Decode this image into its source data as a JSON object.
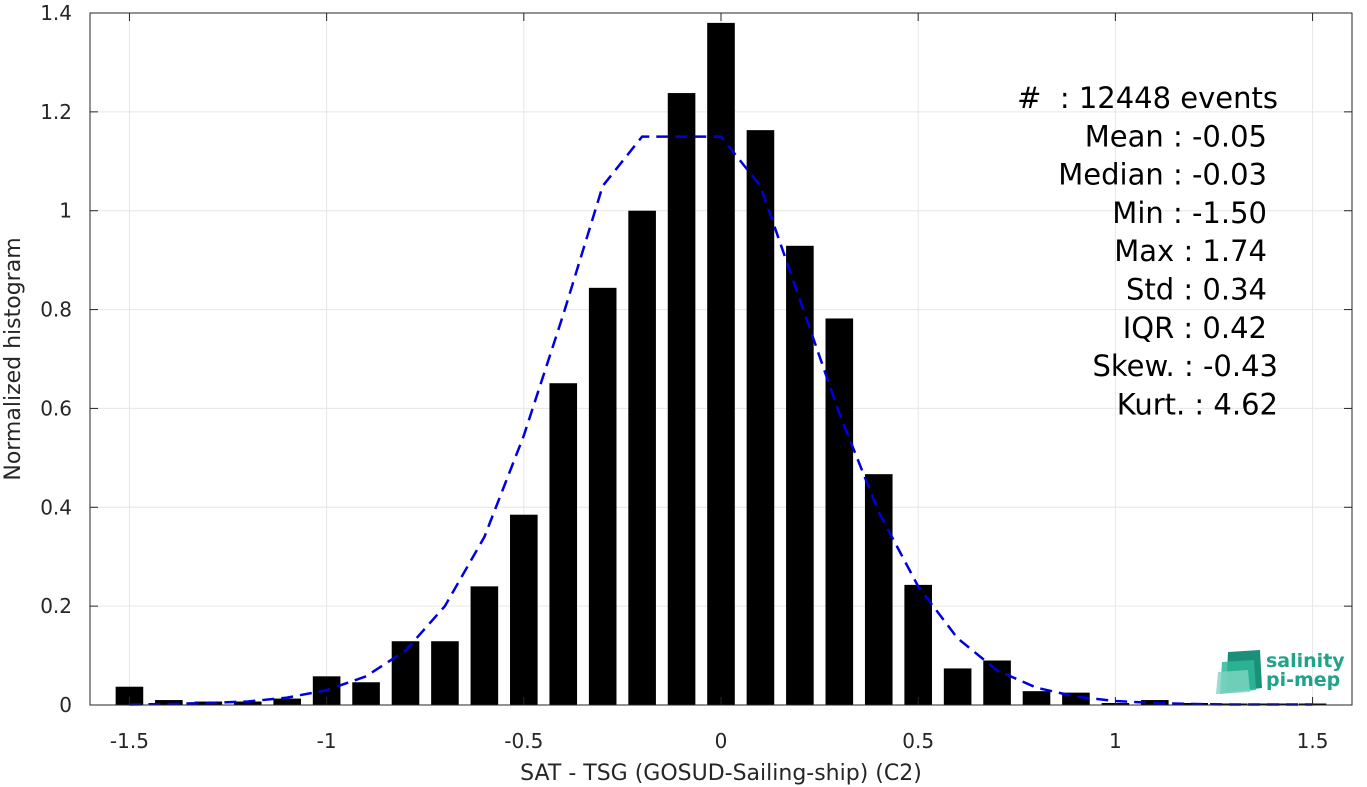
{
  "chart_data": {
    "type": "bar",
    "xlabel": "SAT - TSG (GOSUD-Sailing-ship) (C2)",
    "ylabel": "Normalized histogram",
    "xlim": [
      -1.6,
      1.6
    ],
    "ylim": [
      0,
      1.4
    ],
    "xticks": [
      -1.5,
      -1,
      -0.5,
      0,
      0.5,
      1,
      1.5
    ],
    "xtick_labels": [
      "-1.5",
      "-1",
      "-0.5",
      "0",
      "0.5",
      "1",
      "1.5"
    ],
    "yticks": [
      0,
      0.2,
      0.4,
      0.6,
      0.8,
      1,
      1.2,
      1.4
    ],
    "ytick_labels": [
      "0",
      "0.2",
      "0.4",
      "0.6",
      "0.8",
      "1",
      "1.2",
      "1.4"
    ],
    "grid": true,
    "bar_width": 0.07,
    "bar_color": "#000000",
    "bars": {
      "x": [
        -1.5,
        -1.4,
        -1.3,
        -1.2,
        -1.1,
        -1.0,
        -0.9,
        -0.8,
        -0.7,
        -0.6,
        -0.5,
        -0.4,
        -0.3,
        -0.2,
        -0.1,
        0.0,
        0.1,
        0.2,
        0.3,
        0.4,
        0.5,
        0.6,
        0.7,
        0.8,
        0.9,
        1.0,
        1.1,
        1.2,
        1.3,
        1.4,
        1.5
      ],
      "values": [
        0.037,
        0.01,
        0.007,
        0.007,
        0.013,
        0.058,
        0.046,
        0.129,
        0.129,
        0.24,
        0.385,
        0.651,
        0.844,
        1.0,
        1.238,
        1.38,
        1.163,
        0.929,
        0.782,
        0.467,
        0.243,
        0.074,
        0.09,
        0.028,
        0.025,
        0.004,
        0.01,
        0.004,
        0.003,
        0.003,
        0.003
      ]
    },
    "fit_curve": {
      "style": "dashed",
      "color": "#0000dd",
      "x": [
        -1.5,
        -1.4,
        -1.3,
        -1.2,
        -1.1,
        -1.0,
        -0.9,
        -0.8,
        -0.7,
        -0.6,
        -0.5,
        -0.4,
        -0.3,
        -0.2,
        -0.1,
        0.0,
        0.1,
        0.2,
        0.3,
        0.4,
        0.5,
        0.6,
        0.7,
        0.8,
        0.9,
        1.0,
        1.1,
        1.2,
        1.3,
        1.4,
        1.5
      ],
      "y": [
        0.001,
        0.002,
        0.004,
        0.007,
        0.015,
        0.03,
        0.058,
        0.11,
        0.2,
        0.34,
        0.545,
        0.79,
        1.05,
        1.15,
        1.15,
        1.15,
        1.05,
        0.82,
        0.59,
        0.39,
        0.24,
        0.135,
        0.07,
        0.035,
        0.017,
        0.008,
        0.004,
        0.002,
        0.001,
        0.001,
        0.001
      ]
    },
    "annotations": [
      "#  : 12448 events",
      "Mean : -0.05",
      "Median : -0.03",
      "Min : -1.50",
      "Max : 1.74",
      "Std : 0.34",
      "IQR : 0.42",
      "Skew. : -0.43",
      "Kurt. : 4.62"
    ]
  },
  "logo": {
    "line1": "salinity",
    "line2": "pi-mep",
    "color": "#21a38a"
  }
}
